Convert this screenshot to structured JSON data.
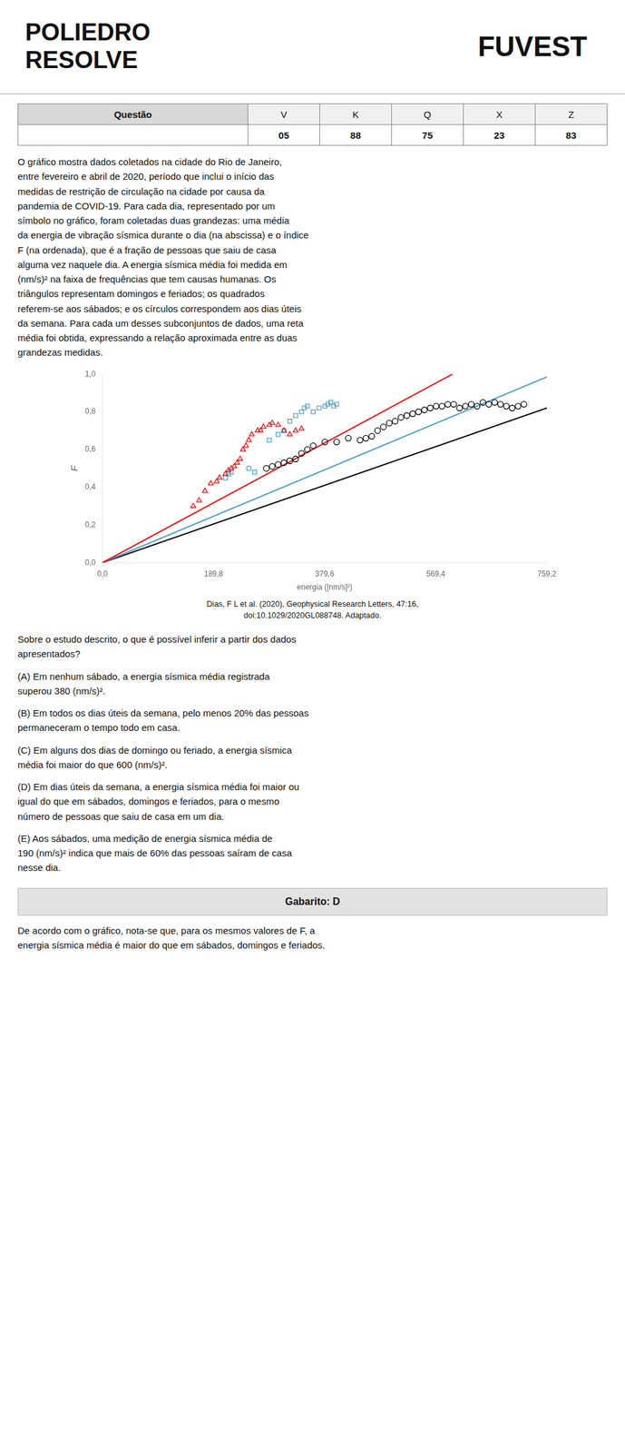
{
  "chart_data": {
    "type": "scatter",
    "annotations": [
      "POLIEDRO",
      "RESOLVE",
      "FUVEST",
      [
        "Questão",
        "V",
        "K",
        "Q",
        "X",
        "Z"
      ],
      [
        null,
        "05",
        "88",
        "75",
        "23",
        "83"
      ],
      "O gráfico mostra dados coletados na cidade do Rio de Janeiro,\nentre fevereiro e abril de 2020, período que inclui o início das\nmedidas de restrição de circulação na cidade por causa da\npandemia de COVID-19. Para cada dia, representado por um\nsímbolo no gráfico, foram coletadas duas grandezas: uma média\nda energia de vibração sísmica durante o dia (na abscissa) e o índice\nF (na ordenada), que é a fração de pessoas que saiu de casa\nalguma vez naquele dia. A energia sísmica média foi medida em\n(nm/s)² na faixa de frequências que tem causas humanas. Os\ntriângulos representam domingos e feriados; os quadrados\nreferem-se aos sábados; e os círculos correspondem aos dias úteis\nda semana. Para cada um desses subconjuntos de dados, uma reta\nmédia foi obtida, expressando a relação aproximada entre as duas\ngrandezas medidas.",
      "Dias, F L et al. (2020), Geophysical Research Letters, 47:16,",
      "doi:10.1029/2020GL088748. Adaptado.",
      "Sobre o estudo descrito, o que é possível inferir a partir dos dados\napresentados?",
      "(A) Em nenhum sábado, a energia sísmica média registrada\nsuperou 380 (nm/s)².",
      "(B) Em todos os dias úteis da semana, pelo menos 20% das pessoas\npermaneceram o tempo todo em casa.",
      "(C) Em alguns dos dias de domingo ou feriado, a energia sísmica\nmédia foi maior do que 600 (nm/s)².",
      "(D) Em dias úteis da semana, a energia sísmica média foi maior ou\nigual do que em sábados, domingos e feriados, para o mesmo\nnúmero de pessoas que saiu de casa em um dia.",
      "(E) Aos sábados, uma medição de energia sísmica média de\n190 (nm/s)² indica que mais de 60% das pessoas saíram de casa\nnesse dia.",
      "Gabarito: D",
      "De acordo com o gráfico, nota-se que, para os mesmos valores de F, a\nenergia sísmica média é maior do que em sábados, domingos e feriados."
    ],
    "x_label": "energia ([nm/s]²)",
    "y_label": "F",
    "xlim": [
      0,
      759.2
    ],
    "ylim": [
      0,
      1.0
    ],
    "xticks": [
      {
        "value": 0.0,
        "label": "0,0"
      },
      {
        "value": 189.8,
        "label": "189,8"
      },
      {
        "value": 379.6,
        "label": "379,6"
      },
      {
        "value": 569.4,
        "label": "569,4"
      },
      {
        "value": 759.2,
        "label": "759,2"
      }
    ],
    "yticks": [
      {
        "value": 0.0,
        "label": "0,0"
      },
      {
        "value": 0.2,
        "label": "0,2"
      },
      {
        "value": 0.4,
        "label": "0,4"
      },
      {
        "value": 0.6,
        "label": "0,6"
      },
      {
        "value": 0.8,
        "label": "0,8"
      },
      {
        "value": 1.0,
        "label": "1,0"
      }
    ],
    "grid": false,
    "series": [
      {
        "type": "scatter",
        "marker": "triangle",
        "color": "red",
        "x": [
          155,
          165,
          175,
          185,
          195,
          200,
          210,
          215,
          220,
          225,
          230,
          235,
          240,
          245,
          250,
          255,
          265,
          270,
          275,
          285,
          290,
          300,
          310,
          320,
          330,
          340
        ],
        "values": [
          0.3,
          0.33,
          0.38,
          0.42,
          0.43,
          0.45,
          0.47,
          0.49,
          0.5,
          0.51,
          0.53,
          0.55,
          0.6,
          0.62,
          0.65,
          0.68,
          0.7,
          0.7,
          0.72,
          0.73,
          0.74,
          0.73,
          0.7,
          0.68,
          0.7,
          0.71
        ]
      },
      {
        "type": "scatter",
        "marker": "square",
        "color": "#4a9ecf",
        "x": [
          210,
          215,
          220,
          250,
          260,
          285,
          300,
          310,
          320,
          330,
          340,
          345,
          350,
          360,
          370,
          380,
          385,
          390,
          395,
          400
        ],
        "values": [
          0.45,
          0.47,
          0.48,
          0.5,
          0.48,
          0.65,
          0.68,
          0.7,
          0.75,
          0.78,
          0.8,
          0.82,
          0.83,
          0.8,
          0.82,
          0.83,
          0.84,
          0.85,
          0.83,
          0.84
        ]
      },
      {
        "type": "scatter",
        "marker": "circle",
        "color": "black",
        "x": [
          280,
          290,
          300,
          310,
          320,
          330,
          340,
          350,
          360,
          380,
          400,
          420,
          440,
          450,
          460,
          470,
          480,
          490,
          500,
          510,
          520,
          530,
          540,
          550,
          560,
          570,
          580,
          590,
          600,
          610,
          620,
          630,
          640,
          650,
          660,
          670,
          680,
          690,
          700,
          710,
          720
        ],
        "values": [
          0.5,
          0.51,
          0.52,
          0.53,
          0.54,
          0.55,
          0.58,
          0.6,
          0.62,
          0.64,
          0.64,
          0.66,
          0.65,
          0.66,
          0.67,
          0.7,
          0.72,
          0.74,
          0.75,
          0.77,
          0.78,
          0.79,
          0.8,
          0.81,
          0.82,
          0.83,
          0.83,
          0.84,
          0.84,
          0.82,
          0.83,
          0.84,
          0.83,
          0.85,
          0.84,
          0.85,
          0.84,
          0.83,
          0.82,
          0.83,
          0.84
        ]
      },
      {
        "type": "line",
        "line_style": "solid",
        "color": "red",
        "x": [
          0,
          598
        ],
        "values": [
          0,
          1.0
        ]
      },
      {
        "type": "line",
        "line_style": "solid",
        "color": "#4a9ecf",
        "x": [
          0,
          759.2
        ],
        "values": [
          0,
          0.985
        ]
      },
      {
        "type": "line",
        "line_style": "solid",
        "color": "black",
        "x": [
          0,
          759.2
        ],
        "values": [
          0,
          0.82
        ]
      }
    ]
  }
}
